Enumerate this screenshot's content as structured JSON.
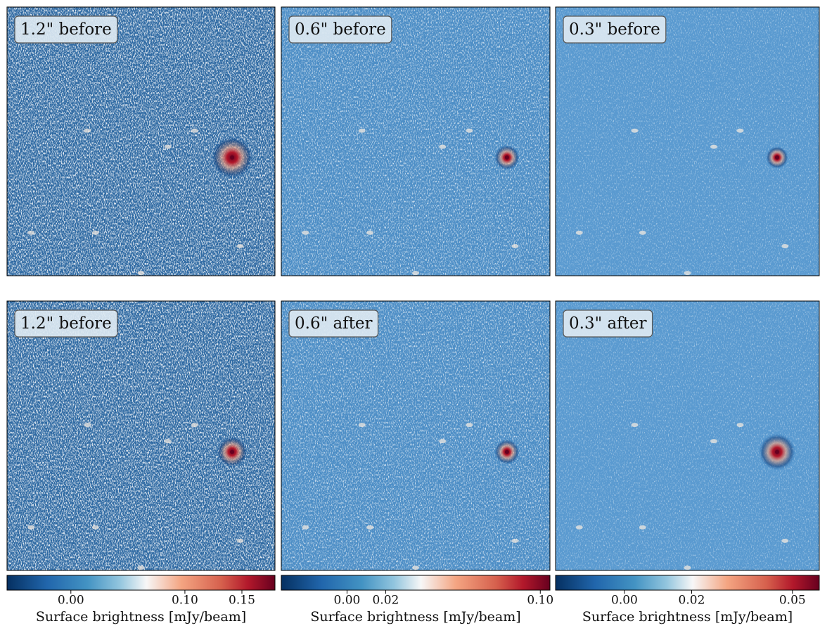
{
  "panels": [
    {
      "label": "1.2\" before"
    },
    {
      "label": "0.6\" before"
    },
    {
      "label": "0.3\" before"
    },
    {
      "label": "1.2\" before"
    },
    {
      "label": "0.6\" after"
    },
    {
      "label": "0.3\" after"
    }
  ],
  "colorbars": [
    {
      "label": "Surface brightness [mJy/beam]",
      "clim": [
        -0.056,
        0.179
      ],
      "ticks": [
        {
          "value": 0,
          "label": "0.00"
        },
        {
          "value": 0.1,
          "label": "0.10"
        },
        0.15
      ]
    },
    {
      "label": "Surface brightness [mJy/beam]",
      "clim": [
        -0.034,
        0.105
      ],
      "ticks": [
        {
          "value": 0,
          "label": "0.00"
        },
        0.02,
        {
          "value": 0.1,
          "label": "0.10"
        }
      ]
    },
    {
      "label": "Surface brightness [mJy/beam]",
      "clim": [
        -0.0205,
        0.058
      ],
      "ticks": [
        {
          "value": 0,
          "label": "0.00"
        },
        0.02,
        0.05
      ]
    }
  ]
}
